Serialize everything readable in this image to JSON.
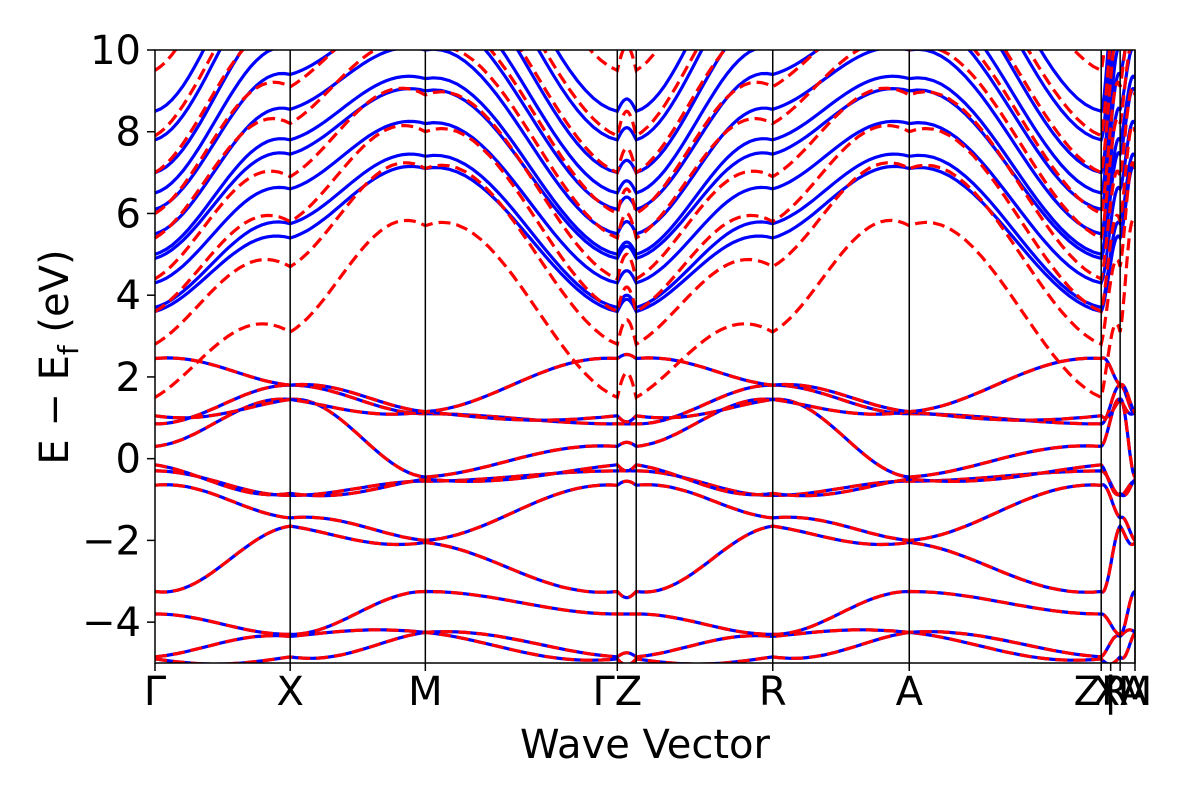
{
  "chart_data": {
    "type": "line",
    "xlabel": "Wave Vector",
    "ylabel_main": "E − E",
    "ylabel_sub": "f",
    "ylabel_unit": " (eV)",
    "ylim": [
      -5,
      10
    ],
    "yticks": [
      -4,
      -2,
      0,
      2,
      4,
      6,
      8,
      10
    ],
    "ytick_labels": [
      "−4",
      "−2",
      "0",
      "2",
      "4",
      "6",
      "8",
      "10"
    ],
    "xlim": [
      0,
      7.25
    ],
    "kpoints": [
      {
        "label": "Γ",
        "x": 0.0
      },
      {
        "label": "X",
        "x": 1.0
      },
      {
        "label": "M",
        "x": 2.0
      },
      {
        "label": "ΓZ",
        "x": 3.42
      },
      {
        "label": "R",
        "x": 4.57
      },
      {
        "label": "A",
        "x": 5.58
      },
      {
        "label": "ZR",
        "x": 7.0
      },
      {
        "label": "|",
        "x": 7.07
      },
      {
        "label": "XA",
        "x": 7.14
      },
      {
        "label": "M",
        "x": 7.25
      }
    ],
    "vlines": [
      1.0,
      2.0,
      3.42,
      3.56,
      4.57,
      5.58,
      7.0,
      7.14,
      7.25
    ],
    "segment_breaks": [
      0.0,
      1.0,
      2.0,
      3.42,
      3.56,
      4.57,
      5.58,
      7.0,
      7.14,
      7.25
    ],
    "series_styles": [
      {
        "key": "blue",
        "color": "#0000ff",
        "dash": "solid"
      },
      {
        "key": "red",
        "color": "#ff0000",
        "dash": "dashed"
      }
    ],
    "valence_bands_eV": {
      "gamma": [
        -4.9,
        -4.85,
        -3.8,
        -3.25,
        -0.65,
        -0.3,
        -0.15,
        0.3,
        0.85,
        1.05,
        2.45
      ],
      "X": [
        -4.85,
        -4.35,
        -4.3,
        -1.65,
        -1.45,
        -0.9,
        -0.85,
        1.45,
        1.8,
        1.45,
        1.8
      ],
      "M": [
        -4.25,
        -4.25,
        -3.25,
        -2.05,
        -2.0,
        -0.55,
        -0.5,
        -0.45,
        1.1,
        1.15,
        1.15
      ]
    },
    "conduction_bands_eV": {
      "blue_gamma": [
        3.6,
        3.7,
        4.3,
        4.9,
        5.0,
        5.5,
        6.1,
        6.5,
        7.0,
        7.8,
        8.5
      ],
      "red_gamma": [
        1.5,
        2.8,
        3.6,
        4.4,
        5.4,
        6.0,
        7.0,
        7.9,
        9.5
      ]
    }
  }
}
